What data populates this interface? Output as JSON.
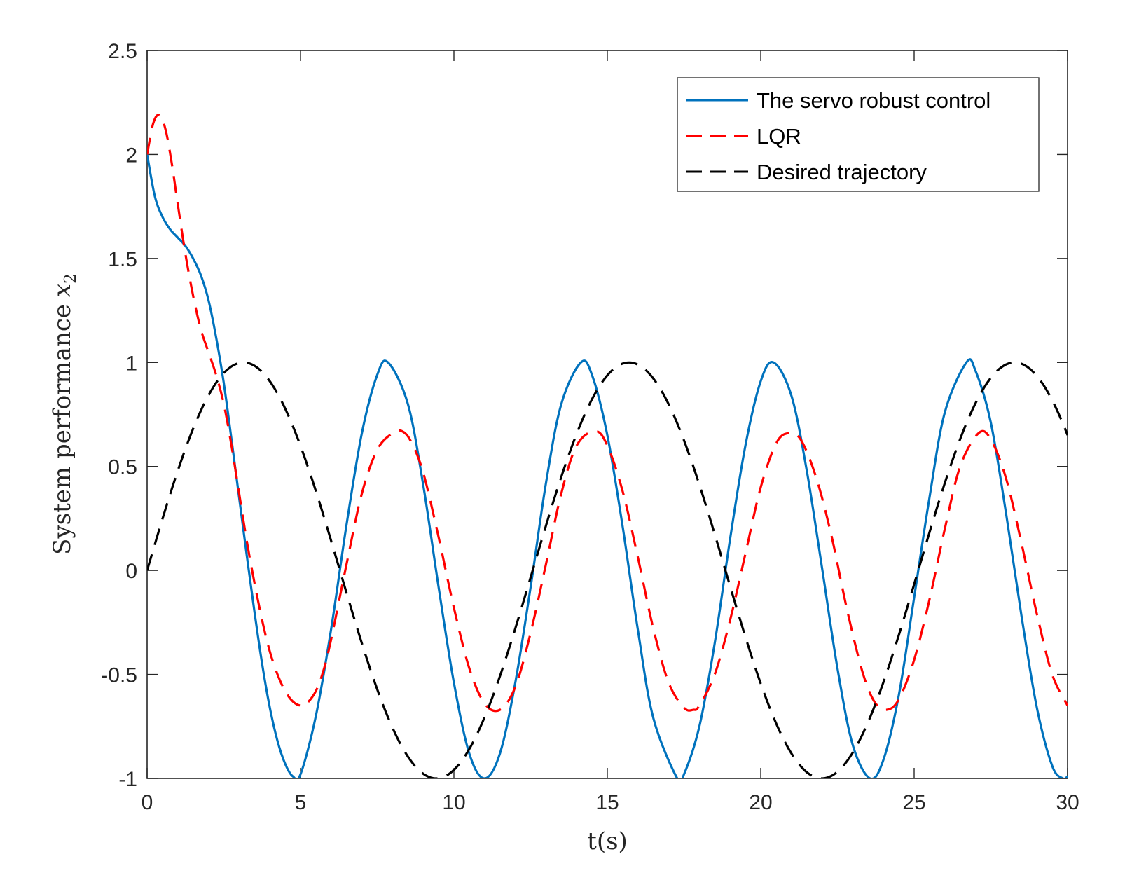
{
  "chart_data": {
    "type": "line",
    "xlabel": "t(s)",
    "ylabel_text": "System performance",
    "ylabel_var": "x",
    "ylabel_sub": "2",
    "xlim": [
      0,
      30
    ],
    "ylim": [
      -1,
      2.5
    ],
    "xticks": [
      0,
      5,
      10,
      15,
      20,
      25,
      30
    ],
    "xtick_labels": [
      "0",
      "5",
      "10",
      "15",
      "20",
      "25",
      "30"
    ],
    "yticks": [
      -1,
      -0.5,
      0,
      0.5,
      1,
      1.5,
      2,
      2.5
    ],
    "ytick_labels": [
      "-1",
      "-0.5",
      "0",
      "0.5",
      "1",
      "1.5",
      "2",
      "2.5"
    ],
    "grid": false,
    "legend_position": "top-right",
    "series": [
      {
        "name": "The servo robust control",
        "color": "#0072BD",
        "style": "solid",
        "x": [
          0,
          0.25,
          0.5,
          0.75,
          1.0,
          1.25,
          1.5,
          1.75,
          2.0,
          2.25,
          2.5,
          2.75,
          3.0,
          3.25,
          3.5,
          3.75,
          4.0,
          4.25,
          4.5,
          4.75,
          5.0,
          5.5,
          6.0,
          6.5,
          7.0,
          7.5,
          7.854,
          8.5,
          9.0,
          9.5,
          10.0,
          10.5,
          10.996,
          11.5,
          12.0,
          12.5,
          13.0,
          13.5,
          14.137,
          14.5,
          15.0,
          15.5,
          16.0,
          16.5,
          17.279,
          17.5,
          18.0,
          18.5,
          19.0,
          19.5,
          20.0,
          20.42,
          21.0,
          21.5,
          22.0,
          22.5,
          23.0,
          23.562,
          24.0,
          24.5,
          25.0,
          25.5,
          26.0,
          26.704,
          27.0,
          27.5,
          28.0,
          28.5,
          29.0,
          29.5,
          29.845,
          30.0
        ],
        "y": [
          2.0,
          1.8,
          1.7,
          1.64,
          1.6,
          1.56,
          1.5,
          1.42,
          1.3,
          1.12,
          0.9,
          0.63,
          0.35,
          0.07,
          -0.2,
          -0.45,
          -0.66,
          -0.82,
          -0.93,
          -0.99,
          -0.98,
          -0.7,
          -0.28,
          0.22,
          0.66,
          0.94,
          1.0,
          0.8,
          0.41,
          -0.08,
          -0.54,
          -0.88,
          -1.0,
          -0.88,
          -0.54,
          -0.08,
          0.42,
          0.8,
          1.0,
          0.94,
          0.65,
          0.21,
          -0.29,
          -0.71,
          -1.0,
          -0.98,
          -0.75,
          -0.35,
          0.15,
          0.6,
          0.91,
          1.0,
          0.84,
          0.48,
          0.01,
          -0.47,
          -0.84,
          -1.0,
          -0.91,
          -0.6,
          -0.13,
          0.35,
          0.76,
          1.0,
          0.96,
          0.71,
          0.27,
          -0.22,
          -0.66,
          -0.94,
          -1.0,
          -0.99
        ]
      },
      {
        "name": "LQR",
        "color": "#FF0000",
        "style": "dashed",
        "x": [
          0,
          0.2,
          0.4,
          0.6,
          0.8,
          1.0,
          1.25,
          1.5,
          1.75,
          2.0,
          2.25,
          2.5,
          2.75,
          3.0,
          3.25,
          3.5,
          3.75,
          4.0,
          4.25,
          4.5,
          4.75,
          5.0,
          5.2,
          5.5,
          5.75,
          6.0,
          6.5,
          7.0,
          7.5,
          8.0,
          8.3,
          8.6,
          9.0,
          9.5,
          10.0,
          10.5,
          11.0,
          11.5,
          12.0,
          12.5,
          13.0,
          13.5,
          14.0,
          14.6,
          15.0,
          15.5,
          16.0,
          16.5,
          17.0,
          17.5,
          17.8,
          18.0,
          18.5,
          19.0,
          19.5,
          20.0,
          20.5,
          20.9,
          21.3,
          21.8,
          22.3,
          22.8,
          23.3,
          23.7,
          24.1,
          24.5,
          25.0,
          25.5,
          26.0,
          26.5,
          27.1,
          27.5,
          28.0,
          28.5,
          29.0,
          29.5,
          30.0
        ],
        "y": [
          2.0,
          2.15,
          2.19,
          2.12,
          1.96,
          1.76,
          1.52,
          1.32,
          1.16,
          1.05,
          0.94,
          0.8,
          0.6,
          0.37,
          0.14,
          -0.06,
          -0.24,
          -0.39,
          -0.5,
          -0.58,
          -0.63,
          -0.65,
          -0.64,
          -0.58,
          -0.48,
          -0.33,
          0.03,
          0.37,
          0.58,
          0.66,
          0.67,
          0.62,
          0.47,
          0.16,
          -0.18,
          -0.47,
          -0.64,
          -0.67,
          -0.56,
          -0.3,
          0.03,
          0.37,
          0.6,
          0.67,
          0.6,
          0.38,
          0.06,
          -0.28,
          -0.54,
          -0.66,
          -0.67,
          -0.65,
          -0.5,
          -0.24,
          0.08,
          0.4,
          0.61,
          0.66,
          0.63,
          0.45,
          0.17,
          -0.18,
          -0.48,
          -0.63,
          -0.67,
          -0.62,
          -0.43,
          -0.14,
          0.2,
          0.5,
          0.66,
          0.63,
          0.44,
          0.13,
          -0.21,
          -0.5,
          -0.65
        ]
      },
      {
        "name": "Desired trajectory",
        "color": "#000000",
        "style": "dashed",
        "function": "sin(0.5*t)"
      }
    ]
  }
}
